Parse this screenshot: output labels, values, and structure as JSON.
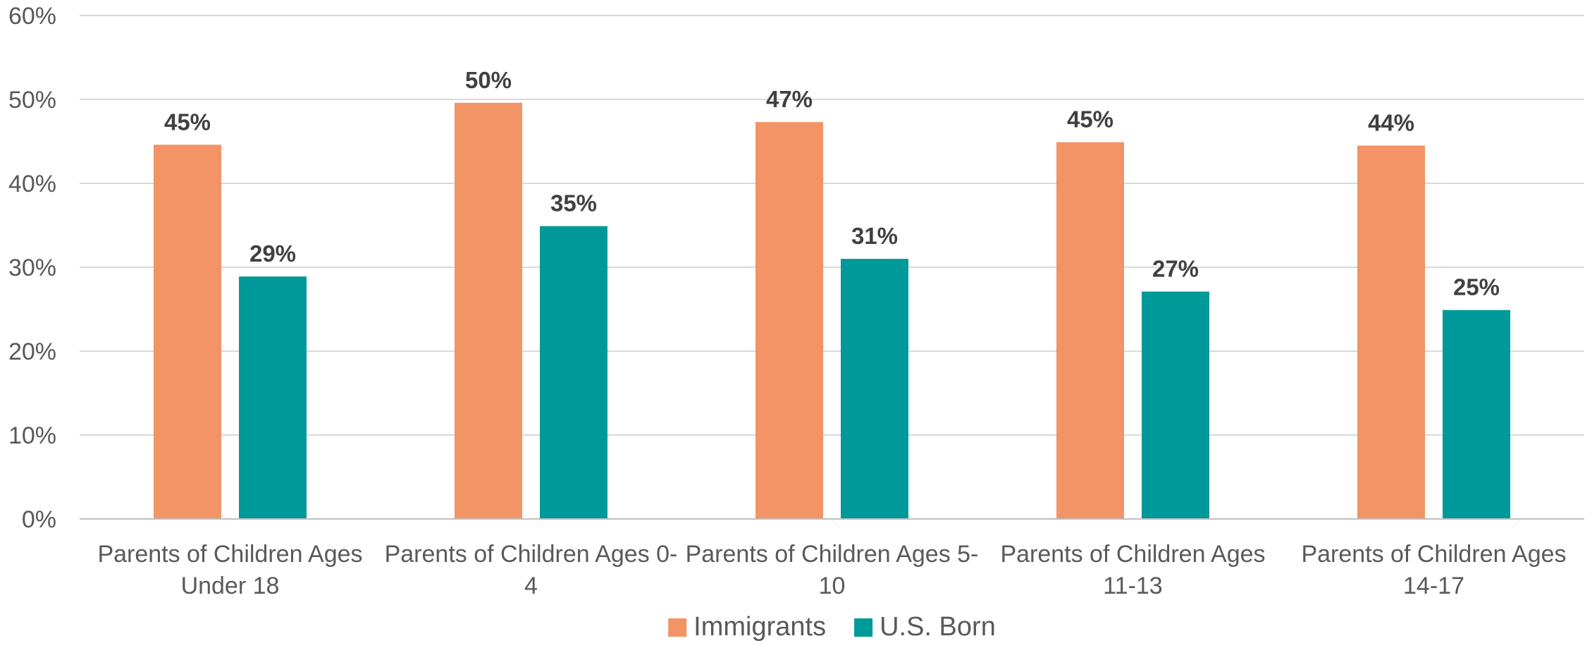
{
  "chart_data": {
    "type": "bar",
    "categories": [
      [
        "Parents of Children Ages",
        "Under 18"
      ],
      [
        "Parents of Children Ages 0-",
        "4"
      ],
      [
        "Parents of Children Ages 5-",
        "10"
      ],
      [
        "Parents of Children Ages",
        "11-13"
      ],
      [
        "Parents of Children Ages",
        "14-17"
      ]
    ],
    "series": [
      {
        "name": "Immigrants",
        "color": "#F29466",
        "values": [
          45,
          50,
          47,
          45,
          44
        ],
        "labels": [
          "45%",
          "50%",
          "47%",
          "45%",
          "44%"
        ],
        "bar_values": [
          44.6,
          49.6,
          47.3,
          44.9,
          44.5
        ]
      },
      {
        "name": "U.S. Born",
        "color": "#009999",
        "values": [
          29,
          35,
          31,
          27,
          25
        ],
        "labels": [
          "29%",
          "35%",
          "31%",
          "27%",
          "25%"
        ],
        "bar_values": [
          28.9,
          34.9,
          31.0,
          27.1,
          24.9
        ]
      }
    ],
    "ylim": [
      0,
      60
    ],
    "yticks": [
      0,
      10,
      20,
      30,
      40,
      50,
      60
    ],
    "ytick_labels": [
      "0%",
      "10%",
      "20%",
      "30%",
      "40%",
      "50%",
      "60%"
    ],
    "title": "",
    "xlabel": "",
    "ylabel": "",
    "grid": true,
    "legend_position": "bottom-center",
    "gridline_color": "#D9D9D9",
    "axis_color": "#BFBFBF"
  }
}
